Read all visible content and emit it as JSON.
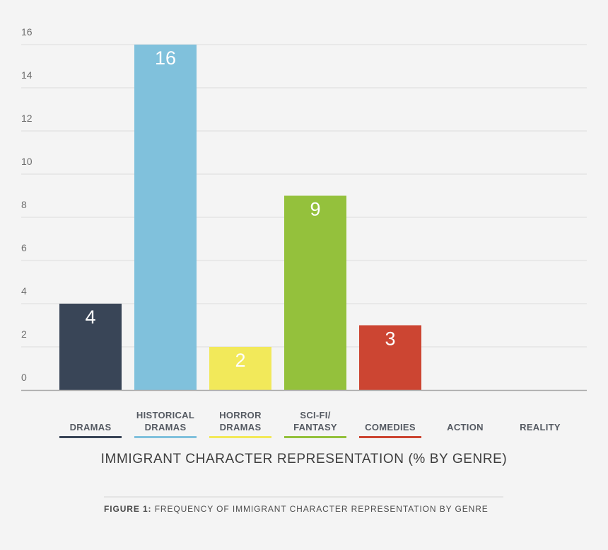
{
  "chart_data": {
    "type": "bar",
    "title": "IMMIGRANT CHARACTER REPRESENTATION (% BY GENRE)",
    "ylim": [
      0,
      16
    ],
    "yticks": [
      0,
      2,
      4,
      6,
      8,
      10,
      12,
      14,
      16
    ],
    "grid": true,
    "categories": [
      {
        "lines": [
          "DRAMAS"
        ],
        "value": 4,
        "color": "#394557"
      },
      {
        "lines": [
          "HISTORICAL",
          "DRAMAS"
        ],
        "value": 16,
        "color": "#80c1dc"
      },
      {
        "lines": [
          "HORROR",
          "DRAMAS"
        ],
        "value": 2,
        "color": "#f2e95a"
      },
      {
        "lines": [
          "SCI-FI/",
          "FANTASY"
        ],
        "value": 9,
        "color": "#94c13c"
      },
      {
        "lines": [
          "COMEDIES"
        ],
        "value": 3,
        "color": "#cc4532"
      },
      {
        "lines": [
          "ACTION"
        ],
        "value": 0,
        "color": null
      },
      {
        "lines": [
          "REALITY"
        ],
        "value": 0,
        "color": null
      }
    ]
  },
  "caption": {
    "figure_number": "FIGURE 1:",
    "text": "FREQUENCY OF IMMIGRANT CHARACTER REPRESENTATION BY GENRE"
  }
}
